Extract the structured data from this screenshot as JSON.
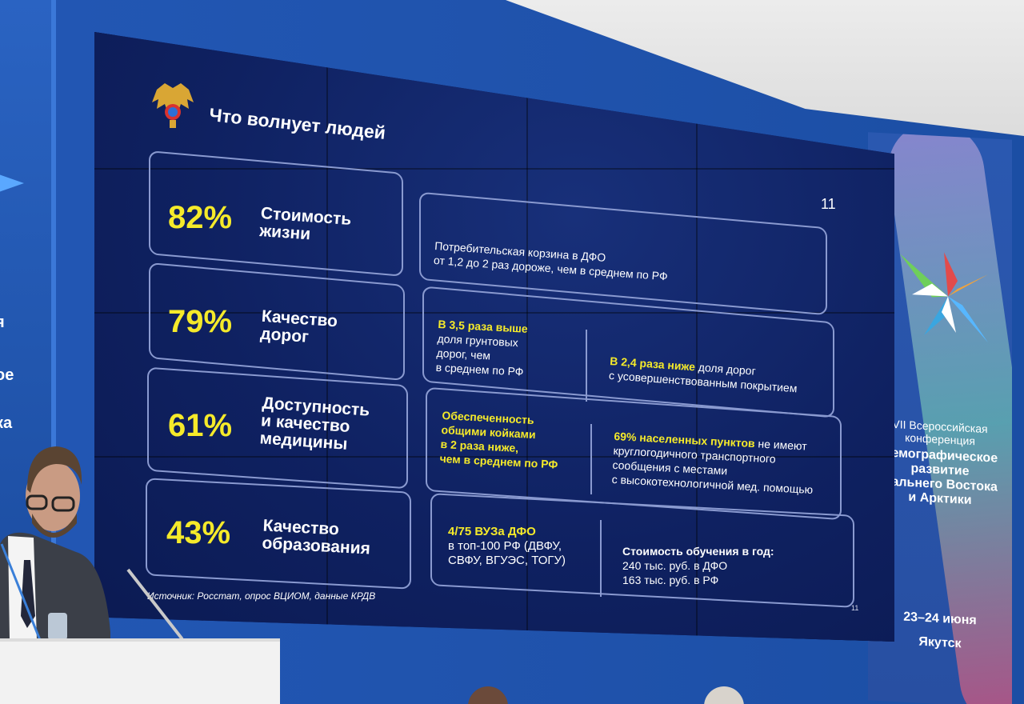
{
  "slide": {
    "title": "Что волнует людей",
    "page_number": "11",
    "page_number_small": "11",
    "source": "Источник: Росстат, опрос ВЦИОМ, данные КРДВ",
    "rows": [
      {
        "percent": "82%",
        "label_line1": "Стоимость",
        "label_line2": "жизни",
        "facts": [
          {
            "plain": "Потребительская корзина в ДФО",
            "plain2": "от 1,2 до 2 раз дороже, чем в среднем по РФ"
          }
        ]
      },
      {
        "percent": "79%",
        "label_line1": "Качество",
        "label_line2": "дорог",
        "facts": [
          {
            "highlight": "В 3,5 раза выше",
            "rest1": "доля грунтовых",
            "rest2": "дорог, чем",
            "rest3": "в среднем по РФ"
          },
          {
            "highlight": "В 2,4 раза ниже",
            "rest1": "доля дорог",
            "rest2": "с усовершенствованным покрытием"
          }
        ]
      },
      {
        "percent": "61%",
        "label_line1": "Доступность",
        "label_line2": "и качество",
        "label_line3": "медицины",
        "facts": [
          {
            "line1": "Обеспеченность",
            "line2": "общими койками",
            "line3": "в 2 раза ниже,",
            "line4": "чем в среднем по РФ"
          },
          {
            "highlight": "69% населенных пунктов",
            "rest1": "не имеют",
            "rest2": "круглогодичного транспортного",
            "rest3": "сообщения с местами",
            "rest4": "с высокотехнологичной мед. помощью"
          }
        ]
      },
      {
        "percent": "43%",
        "label_line1": "Качество",
        "label_line2": "образования",
        "facts": [
          {
            "highlight": "4/75 ВУЗа ДФО",
            "rest1": "в топ-100 РФ (ДВФУ,",
            "rest2": "СВФУ, ВГУЭС, ТОГУ)"
          },
          {
            "highlight": "Стоимость обучения в год:",
            "rest1": "240 тыс. руб. в ДФО",
            "rest2": "163 тыс. руб. в РФ"
          }
        ]
      }
    ]
  },
  "conference": {
    "line1": "VII Всероссийская",
    "line2": "конференция",
    "big1": "Демографическое",
    "big2": "развитие",
    "big3": "Дальнего Востока",
    "big4": "и Арктики",
    "date": "23–24 июня",
    "city": "Якутск"
  },
  "left_banner": {
    "frag1": "я",
    "frag2": "ое",
    "frag3": "ка"
  },
  "colors": {
    "highlight": "#f5ea2a",
    "slide_bg": "#0f2161",
    "wall": "#1f52ab"
  }
}
